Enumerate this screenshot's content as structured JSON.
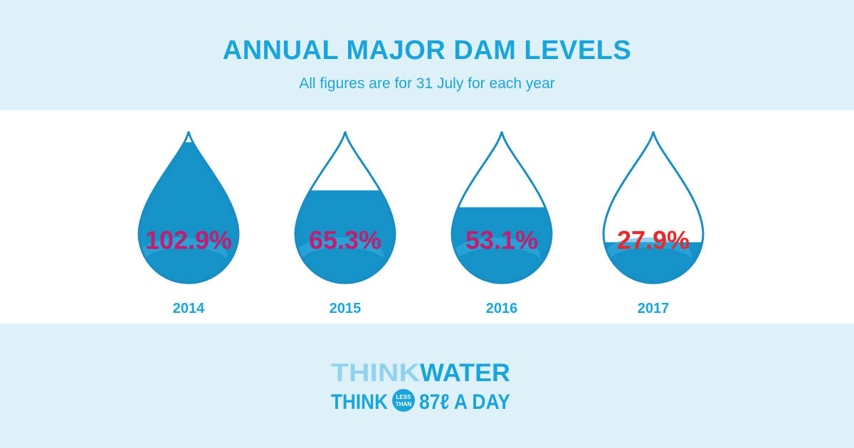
{
  "header": {
    "title": "ANNUAL MAJOR DAM LEVELS",
    "subtitle": "All figures are for 31 July for each year"
  },
  "chart_data": {
    "type": "bar",
    "title": "ANNUAL MAJOR DAM LEVELS",
    "subtitle": "All figures are for 31 July for each year",
    "categories": [
      "2014",
      "2015",
      "2016",
      "2017"
    ],
    "values": [
      102.9,
      65.3,
      53.1,
      27.9
    ],
    "value_labels": [
      "102.9%",
      "65.3%",
      "53.1%",
      "27.9%"
    ],
    "unit": "%",
    "ylim": [
      0,
      100
    ],
    "grid": false,
    "colors": {
      "water": "#1593c9",
      "water_light": "#38ade0",
      "outline": "#1a8cc0",
      "label": "#c21e6f",
      "label_alert": "#e52b2b",
      "year": "#1aa4dc"
    }
  },
  "footer": {
    "logo_line1_a": "THINK",
    "logo_line1_b": "WATER",
    "logo_line2_a": "THINK",
    "badge_top": "LESS",
    "badge_bottom": "THAN",
    "logo_line2_b": "87ℓ A DAY",
    "colors": {
      "light": "#8fd3ef",
      "dark": "#1aa4dc"
    }
  }
}
